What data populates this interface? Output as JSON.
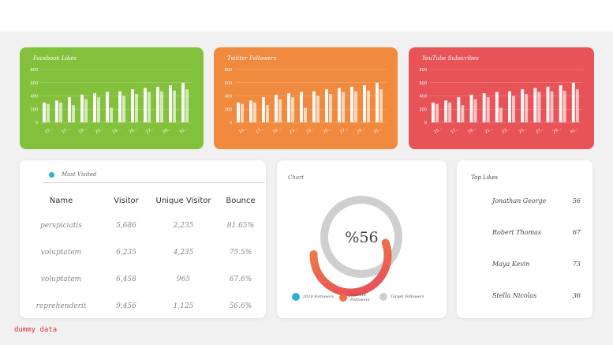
{
  "colors": {
    "green": "#83c13c",
    "orange": "#f08a3e",
    "red": "#e85358",
    "gray": "#cfcfcf"
  },
  "charts": [
    {
      "title": "Facebook Likes",
      "color": "#83c13c",
      "yticks": [
        "0",
        "200",
        "400",
        "600",
        "800"
      ],
      "xticks": [
        "15...",
        "17...",
        "19...",
        "21...",
        "23...",
        "25...",
        "27...",
        "29...",
        "31..."
      ]
    },
    {
      "title": "Twitter Followers",
      "color": "#f08a3e",
      "yticks": [
        "0",
        "200",
        "400",
        "600",
        "800"
      ],
      "xticks": [
        "15...",
        "17...",
        "19...",
        "21...",
        "23...",
        "25...",
        "27...",
        "29...",
        "31..."
      ]
    },
    {
      "title": "YouTube Subscribes",
      "color": "#e85358",
      "yticks": [
        "0",
        "200",
        "400",
        "600",
        "800"
      ],
      "xticks": [
        "15...",
        "17...",
        "19...",
        "21...",
        "23...",
        "25...",
        "27...",
        "29...",
        "31..."
      ]
    }
  ],
  "chart_data": {
    "type": "bar",
    "ylim": [
      0,
      800
    ],
    "series": [
      {
        "values": [
          300,
          330,
          380,
          420,
          440,
          460,
          470,
          500,
          520,
          540,
          560,
          600
        ]
      },
      {
        "values": [
          280,
          300,
          260,
          350,
          380,
          220,
          400,
          430,
          460,
          470,
          480,
          500
        ]
      }
    ]
  },
  "most_visited": {
    "title": "Most Visited",
    "headers": [
      "Name",
      "Visitor",
      "Unique Visitor",
      "Bounce"
    ],
    "rows": [
      [
        "perspiciatis",
        "5,686",
        "2,235",
        "81.65%"
      ],
      [
        "voluptatem",
        "6,235",
        "4,235",
        "75.5%"
      ],
      [
        "voluptatem",
        "6,458",
        "965",
        "67.6%"
      ],
      [
        "reprehenderit",
        "9,456",
        "1,125",
        "56.6%"
      ]
    ]
  },
  "donut": {
    "title": "Chart",
    "value_label": "%56",
    "percent": 56,
    "legend": [
      {
        "label": "2019 Followers",
        "color": "#2bb0d6"
      },
      {
        "label": "Current Followers",
        "color": "#f07040"
      },
      {
        "label": "Target Followers",
        "color": "#cfcfcf"
      }
    ]
  },
  "top_likes": {
    "title": "Top Likes",
    "rows": [
      {
        "name": "Jonathan George",
        "value": "56"
      },
      {
        "name": "Robert Thomas",
        "value": "67"
      },
      {
        "name": "Maya Kevin",
        "value": "73"
      },
      {
        "name": "Stella Nicolas",
        "value": "36"
      }
    ]
  },
  "footer": {
    "note": "dummy data"
  }
}
